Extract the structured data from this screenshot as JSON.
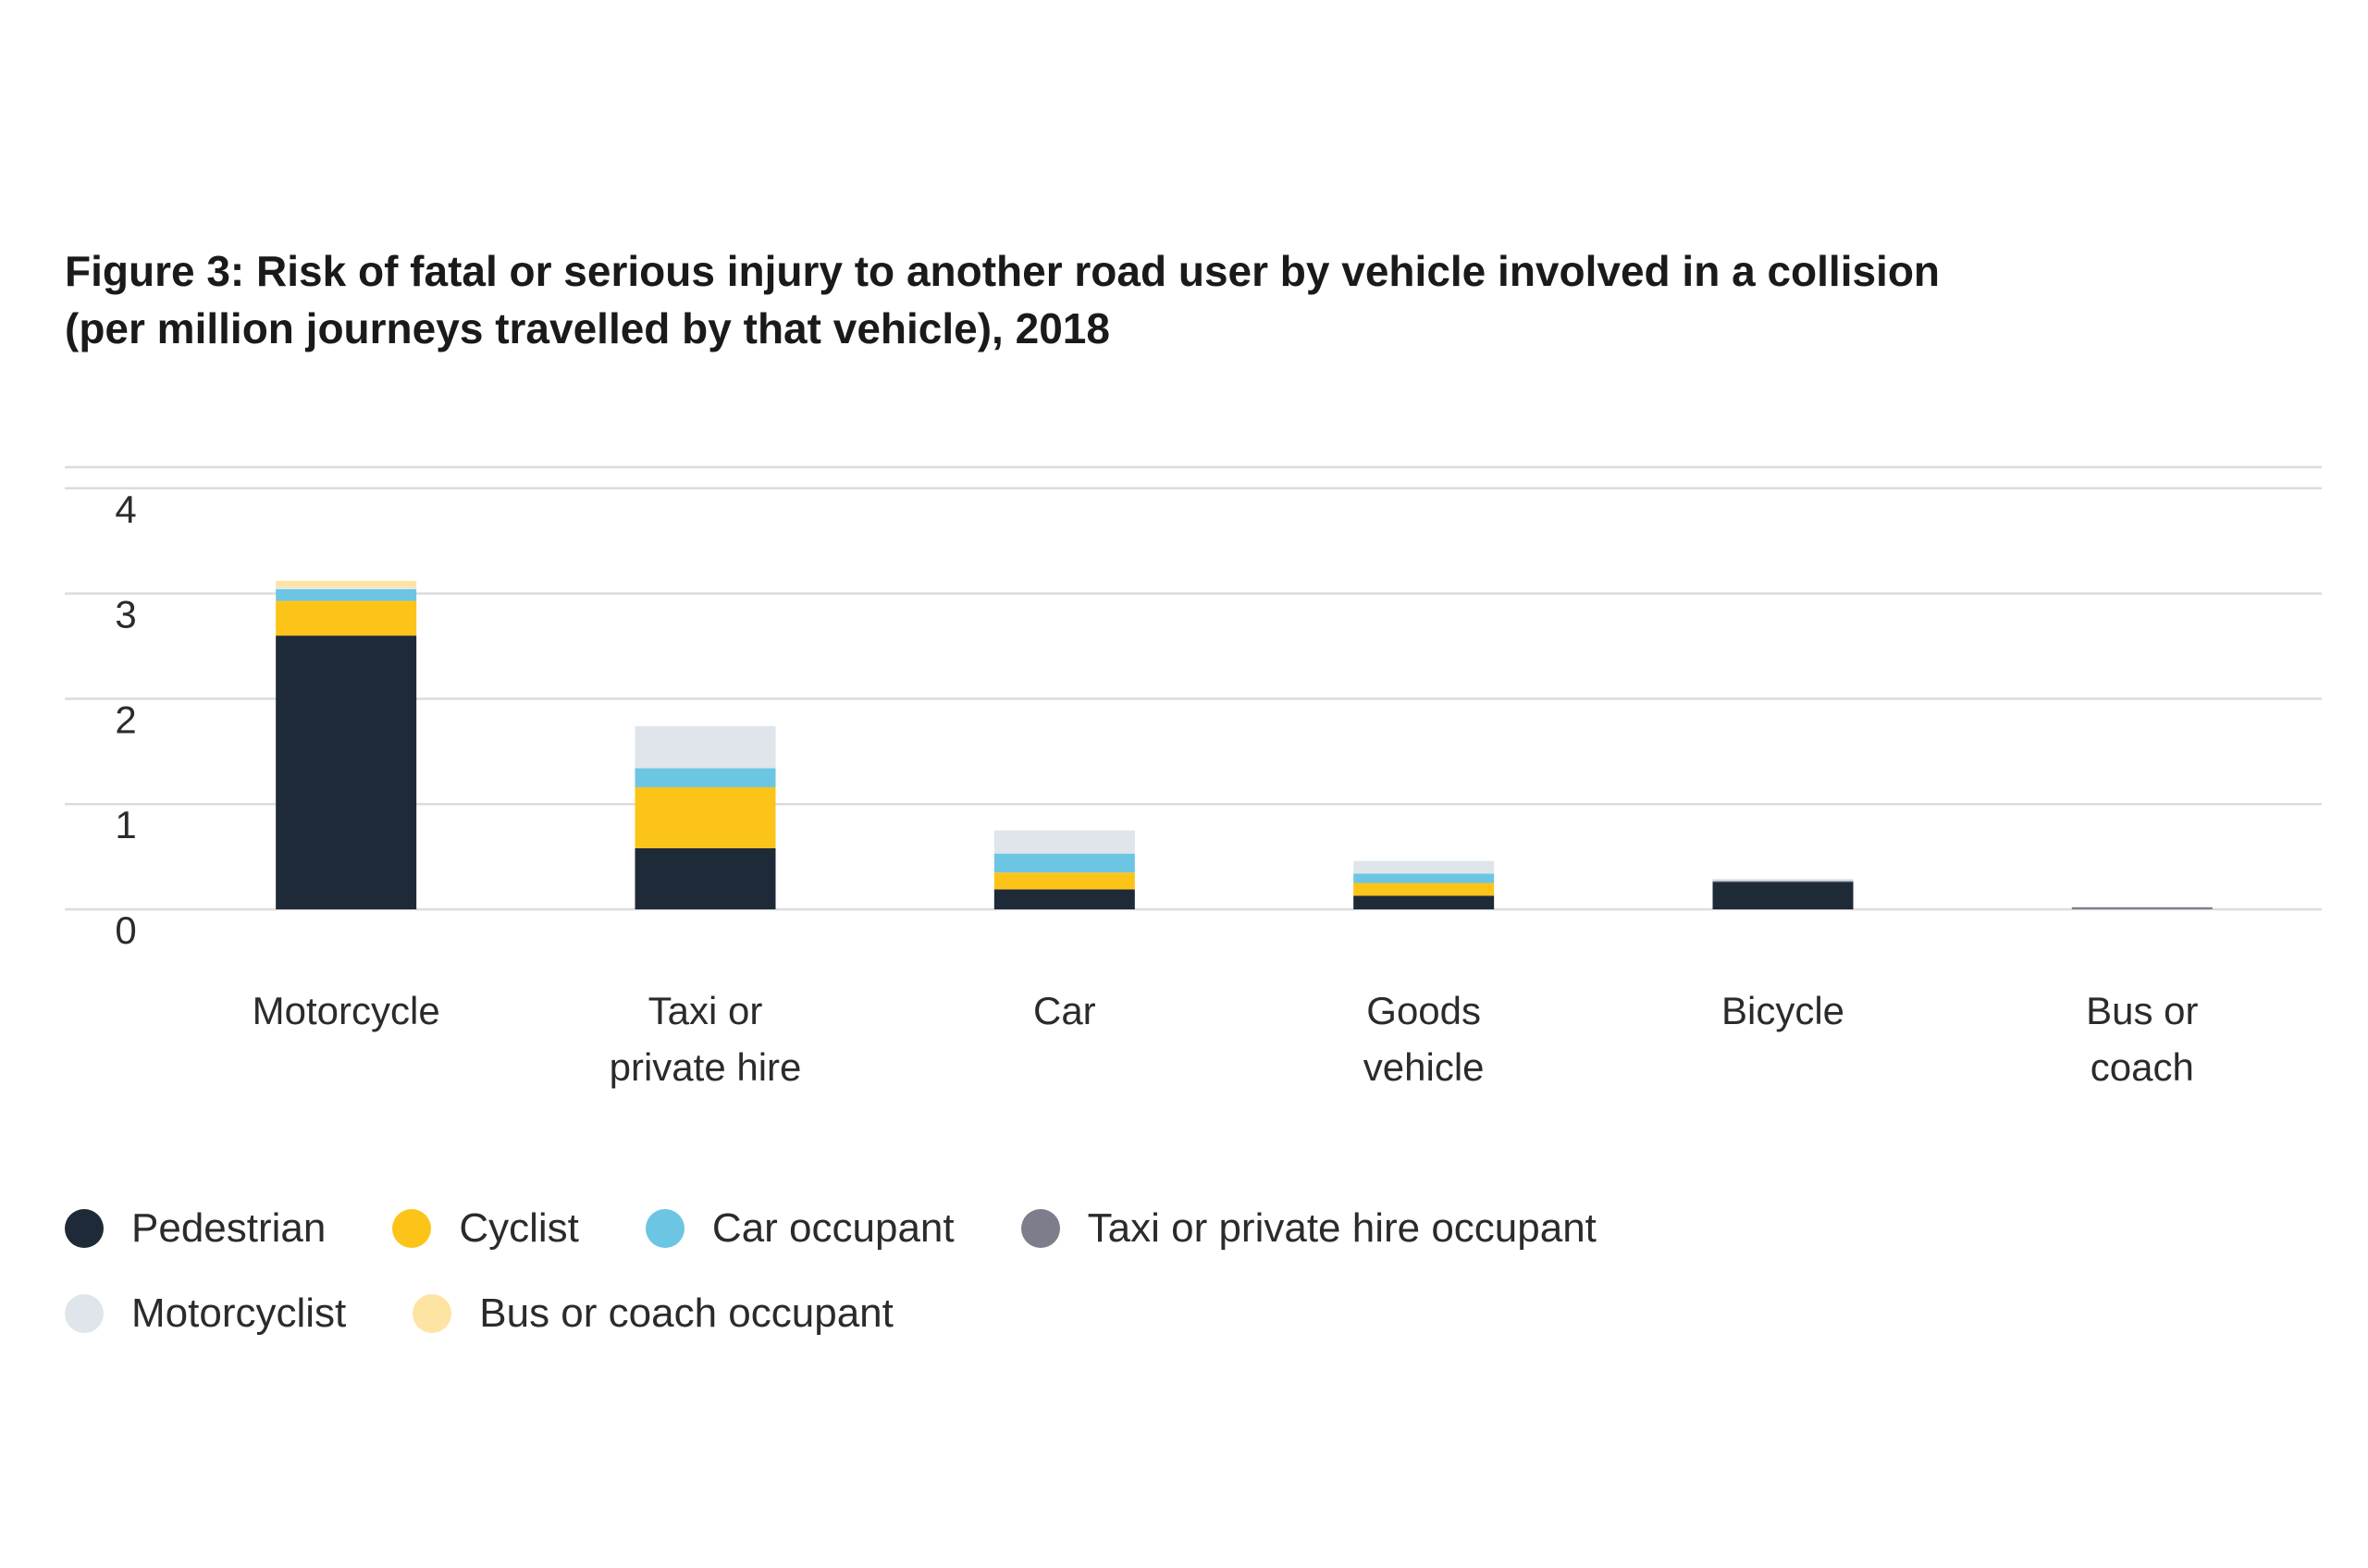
{
  "chart_data": {
    "type": "bar",
    "stacked": true,
    "title": "Figure 3: Risk of fatal or serious injury to another road user by vehicle involved in a collision",
    "subtitle": "(per million journeys travelled by that vehicle), 2018",
    "xlabel": "",
    "ylabel": "",
    "ylim": [
      0,
      4.2
    ],
    "yticks": [
      "0",
      "1",
      "2",
      "3",
      "4"
    ],
    "grid": true,
    "legend_position": "bottom-left",
    "categories": [
      [
        "Motorcycle"
      ],
      [
        "Taxi or",
        "private hire"
      ],
      [
        "Car"
      ],
      [
        "Goods",
        "vehicle"
      ],
      [
        "Bicycle"
      ],
      [
        "Bus or",
        "coach"
      ]
    ],
    "series": [
      {
        "name": "Pedestrian",
        "color": "#1f2a38",
        "values": [
          2.6,
          0.58,
          0.19,
          0.13,
          0.26,
          0.0
        ]
      },
      {
        "name": "Cyclist",
        "color": "#fcc419",
        "values": [
          0.33,
          0.58,
          0.16,
          0.12,
          0.0,
          0.0
        ]
      },
      {
        "name": "Car occupant",
        "color": "#6cc5e3",
        "values": [
          0.11,
          0.18,
          0.18,
          0.09,
          0.0,
          0.0
        ]
      },
      {
        "name": "Taxi or private hire occupant",
        "color": "#7c7e8c",
        "values": [
          0.0,
          0.0,
          0.0,
          0.0,
          0.01,
          0.02
        ]
      },
      {
        "name": "Motorcyclist",
        "color": "#dfe5ea",
        "values": [
          0.02,
          0.4,
          0.22,
          0.12,
          0.02,
          0.0
        ]
      },
      {
        "name": "Bus or coach occupant",
        "color": "#fde4a3",
        "values": [
          0.06,
          0.0,
          0.0,
          0.0,
          0.0,
          0.0
        ]
      }
    ]
  }
}
